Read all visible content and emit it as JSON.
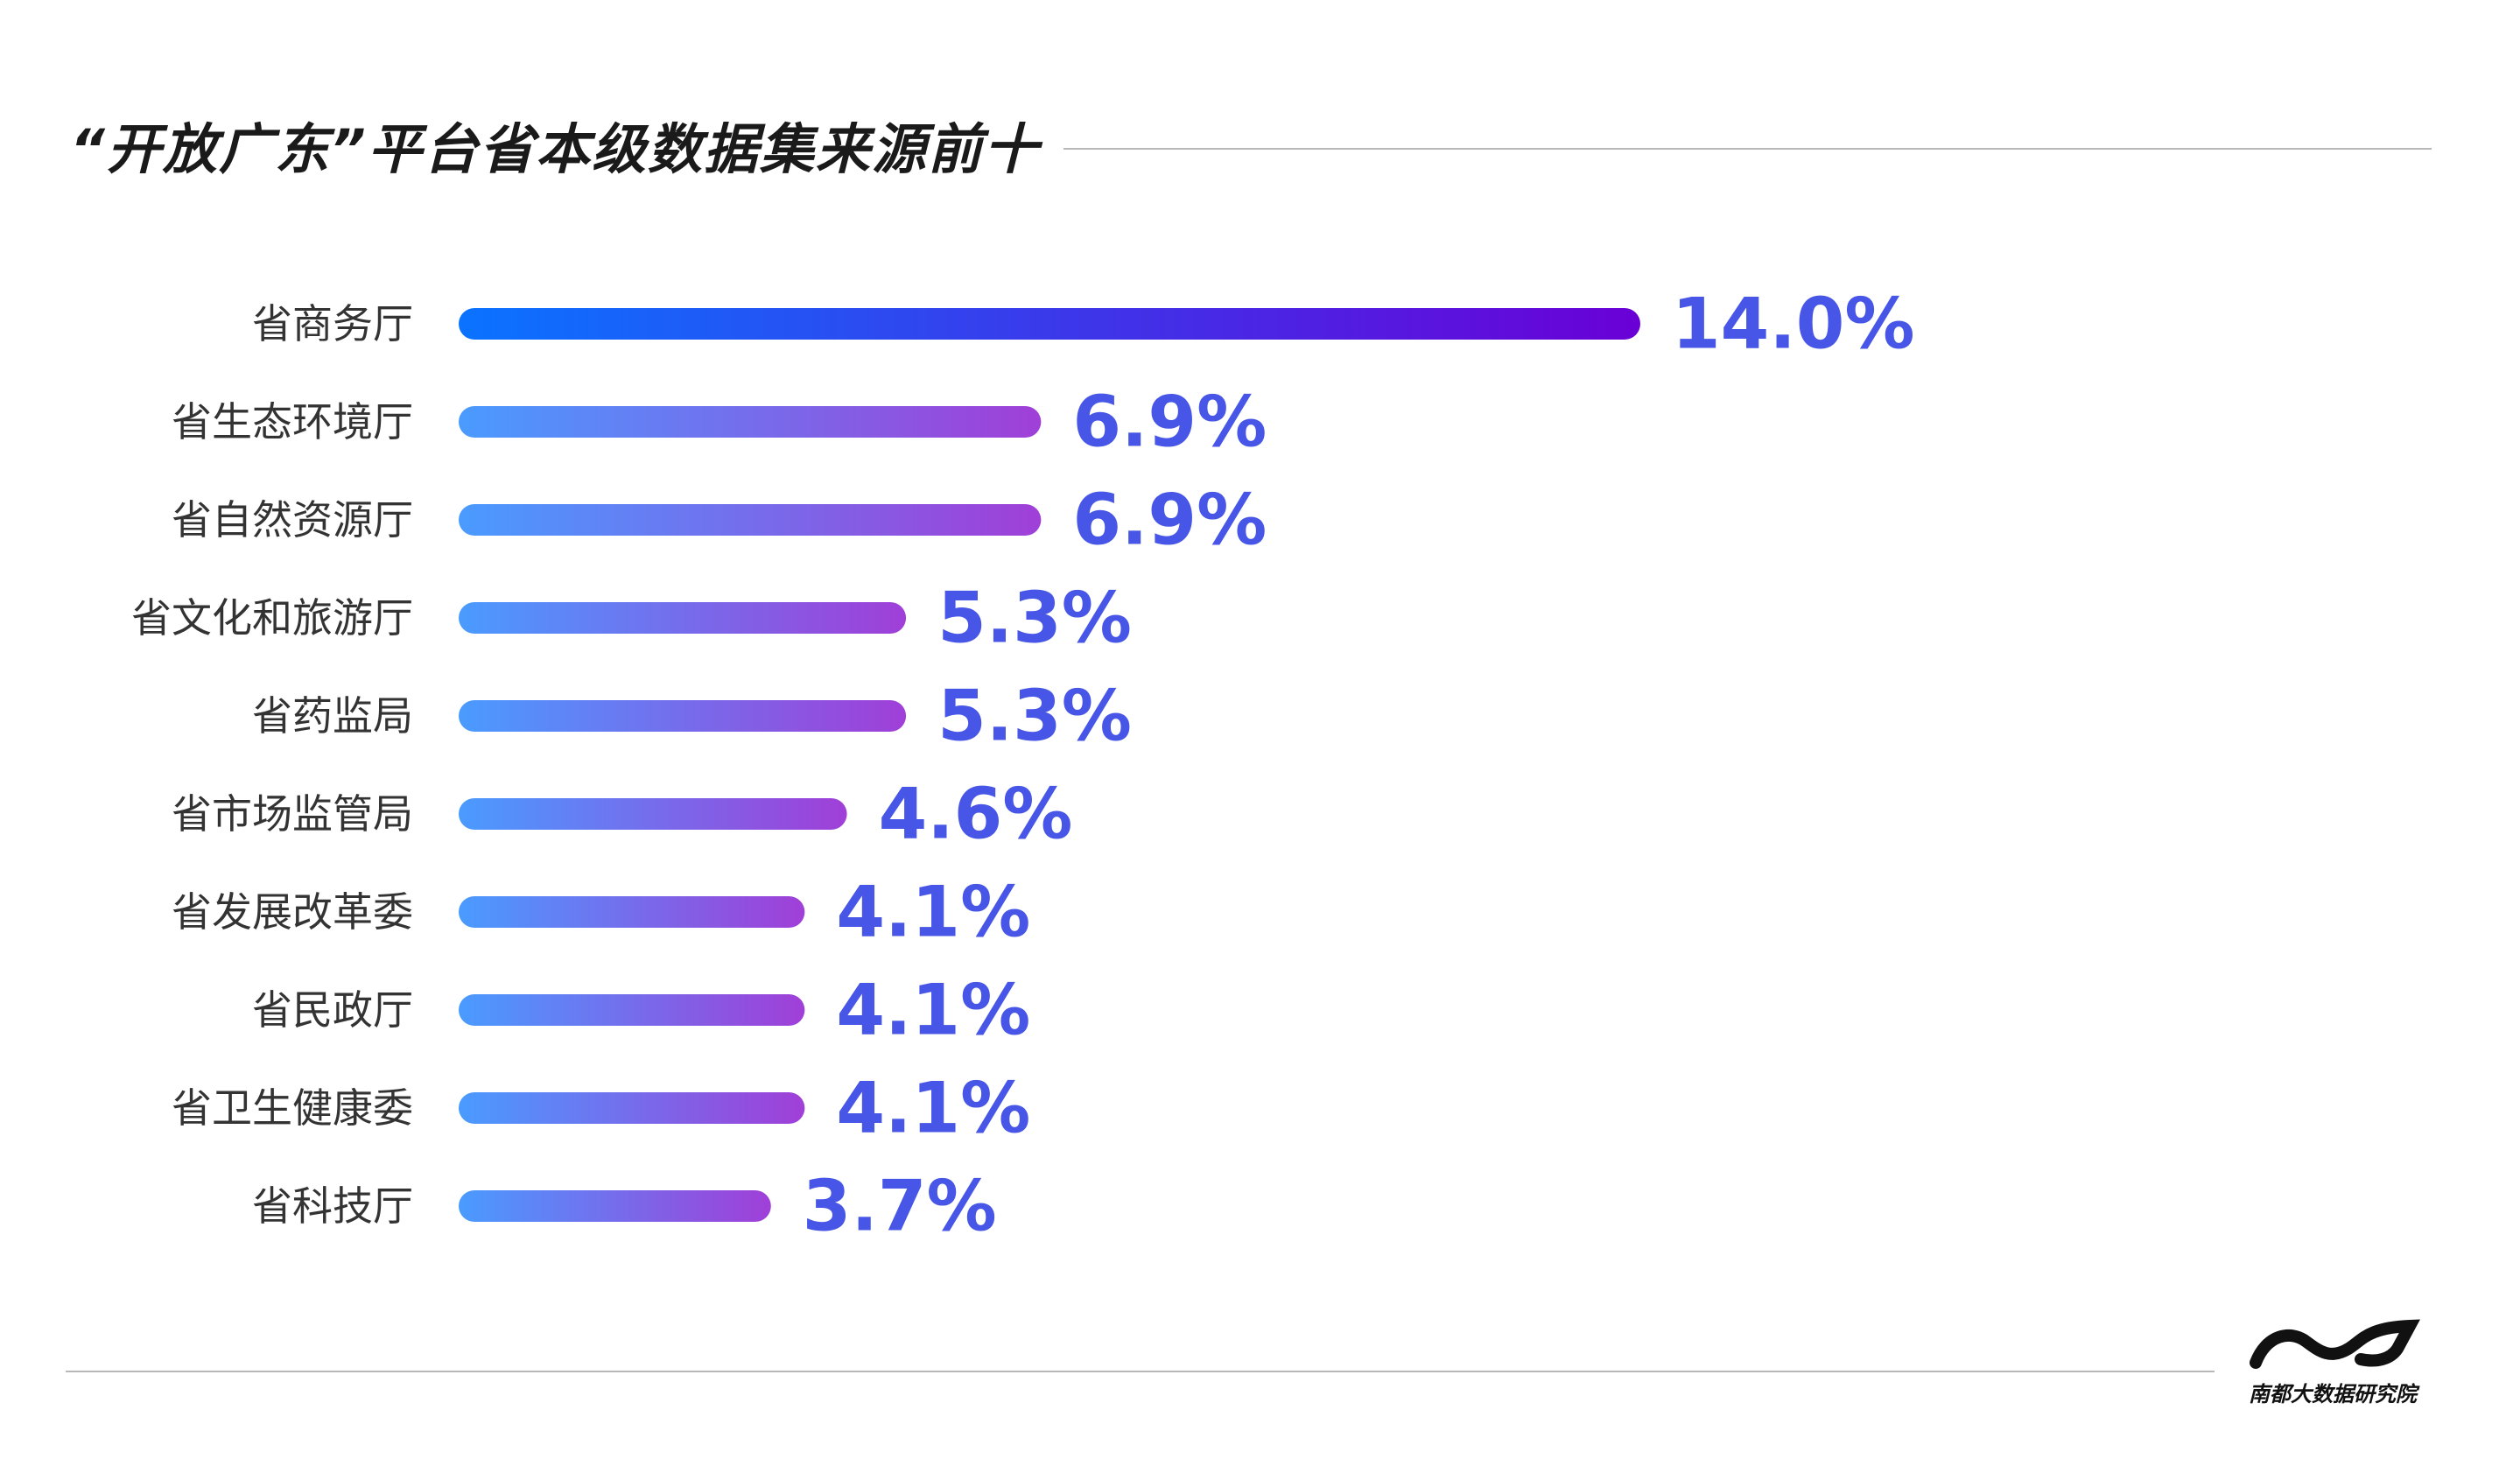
{
  "title": "“开放广东”平台省本级数据集来源前十",
  "logo": {
    "text": "南都大数据研究院"
  },
  "colors": {
    "label": "#333333",
    "value": "#4756e6",
    "bar_first_start": "#0a73ff",
    "bar_first_end": "#6a00d6",
    "bar_start": "#4a9bff",
    "bar_end": "#a03fd8"
  },
  "chart_data": {
    "type": "bar",
    "orientation": "horizontal",
    "categories": [
      "省商务厅",
      "省生态环境厅",
      "省自然资源厅",
      "省文化和旅游厅",
      "省药监局",
      "省市场监管局",
      "省发展改革委",
      "省民政厅",
      "省卫生健康委",
      "省科技厅"
    ],
    "values": [
      14.0,
      6.9,
      6.9,
      5.3,
      5.3,
      4.6,
      4.1,
      4.1,
      4.1,
      3.7
    ],
    "value_labels": [
      "14.0%",
      "6.9%",
      "6.9%",
      "5.3%",
      "5.3%",
      "4.6%",
      "4.1%",
      "4.1%",
      "4.1%",
      "3.7%"
    ],
    "unit": "%",
    "xlim": [
      0,
      14.0
    ],
    "grid": false,
    "legend": "none"
  }
}
